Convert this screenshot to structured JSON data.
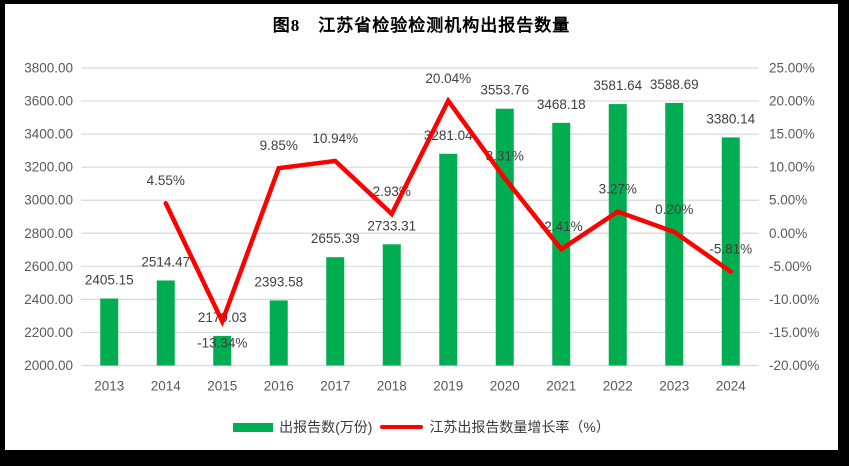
{
  "window": {
    "title": "图8　江苏省检验检测机构出报告数量"
  },
  "legend": {
    "bar_label": "出报告数(万份)",
    "line_label": "江苏出报告数量增长率（%）"
  },
  "chart_data": {
    "type": "bar+line combo",
    "title": "图8　江苏省检验检测机构出报告数量",
    "categories": [
      "2013",
      "2014",
      "2015",
      "2016",
      "2017",
      "2018",
      "2019",
      "2020",
      "2021",
      "2022",
      "2023",
      "2024"
    ],
    "series": [
      {
        "name": "出报告数(万份)",
        "type": "bar",
        "axis": "left",
        "color": "#00AD50",
        "values": [
          2405.15,
          2514.47,
          2179.03,
          2393.58,
          2655.39,
          2733.31,
          3281.04,
          3553.76,
          3468.18,
          3581.64,
          3588.69,
          3380.14
        ],
        "labels": [
          "2405.15",
          "2514.47",
          "2179.03",
          "2393.58",
          "2655.39",
          "2733.31",
          "3281.04",
          "3553.76",
          "3468.18",
          "3581.64",
          "3588.69",
          "3380.14"
        ]
      },
      {
        "name": "江苏出报告数量增长率（%）",
        "type": "line",
        "axis": "right",
        "color": "#FE0000",
        "values": [
          null,
          4.55,
          -13.34,
          9.85,
          10.94,
          2.93,
          20.04,
          8.31,
          -2.41,
          3.27,
          0.2,
          -5.81
        ],
        "labels": [
          "",
          "4.55%",
          "-13.34%",
          "9.85%",
          "10.94%",
          "2.93%",
          "20.04%",
          "8.31%",
          "-2.41%",
          "3.27%",
          "0.20%",
          "-5.81%"
        ],
        "label_below": [
          false,
          false,
          true,
          false,
          false,
          false,
          false,
          false,
          false,
          false,
          false,
          false
        ]
      }
    ],
    "left_axis": {
      "min": 2000,
      "max": 3800,
      "step": 200,
      "ticks": [
        "3800.00",
        "3600.00",
        "3400.00",
        "3200.00",
        "3000.00",
        "2800.00",
        "2600.00",
        "2400.00",
        "2200.00",
        "2000.00"
      ]
    },
    "right_axis": {
      "min": -20,
      "max": 25,
      "step": 5,
      "ticks": [
        "25.00%",
        "20.00%",
        "15.00%",
        "10.00%",
        "5.00%",
        "0.00%",
        "-5.00%",
        "-10.00%",
        "-15.00%",
        "-20.00%"
      ]
    },
    "grid": true,
    "grid_color": "#D9D9D9",
    "legend_position": "bottom"
  }
}
